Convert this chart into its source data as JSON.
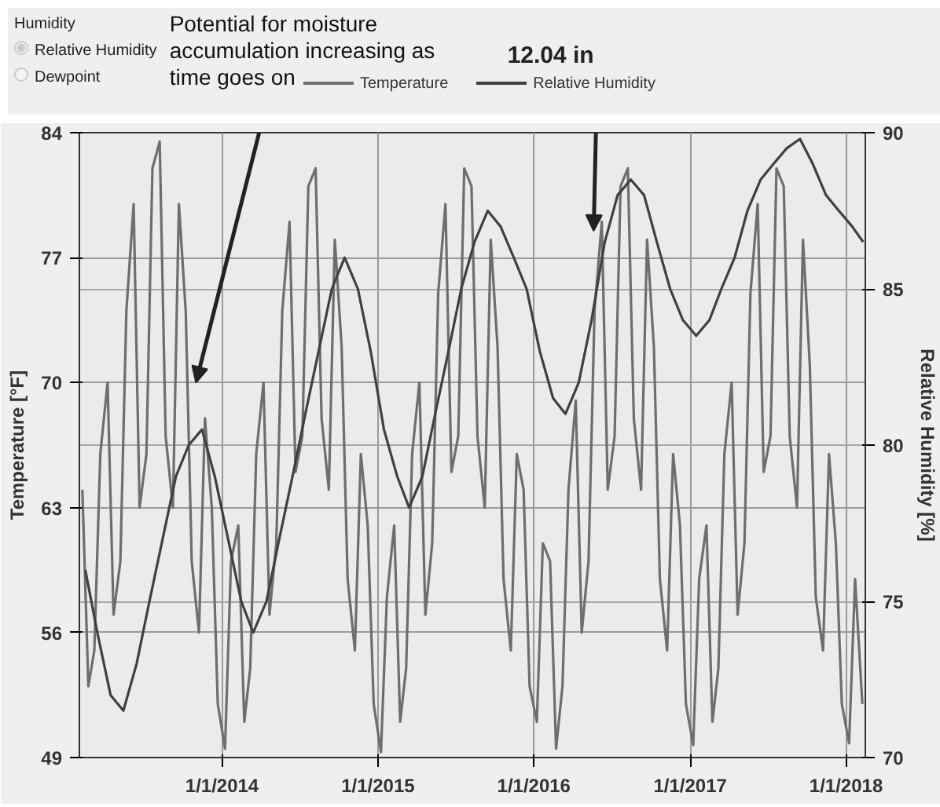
{
  "chart_data": {
    "type": "line",
    "ylabel": "Temperature [°F]",
    "y2label": "Relative Humidity [%]",
    "xlim": [
      "2013-02-01",
      "2018-02-15"
    ],
    "xticks": [
      {
        "value": "2014-01-01",
        "label": "1/1/2014"
      },
      {
        "value": "2015-01-01",
        "label": "1/1/2015"
      },
      {
        "value": "2016-01-01",
        "label": "1/1/2016"
      },
      {
        "value": "2017-01-01",
        "label": "1/1/2017"
      },
      {
        "value": "2018-01-01",
        "label": "1/1/2018"
      }
    ],
    "ylim": [
      49,
      84
    ],
    "yticks": [
      49,
      56,
      63,
      70,
      77,
      84
    ],
    "y2lim": [
      70,
      90
    ],
    "y2ticks": [
      70,
      75,
      80,
      85,
      90
    ],
    "grid": true,
    "legend": "top",
    "annotations": [
      "Humidity",
      "Relative Humidity",
      "Dewpoint",
      {
        "text": "Potential for moisture accumulation increasing as time goes on",
        "x": "2013-11-01",
        "y": 70
      },
      {
        "text": "12.04 in",
        "x": "2016-05-20",
        "y": 78.5
      }
    ],
    "series": [
      {
        "name": "Temperature",
        "color": "#6e6e6e",
        "x": [
          "2013-02-08",
          "2013-02-22",
          "2013-03-08",
          "2013-03-22",
          "2013-04-08",
          "2013-04-22",
          "2013-05-08",
          "2013-05-22",
          "2013-06-08",
          "2013-06-22",
          "2013-07-08",
          "2013-07-22",
          "2013-08-08",
          "2013-08-22",
          "2013-09-08",
          "2013-09-22",
          "2013-10-08",
          "2013-10-22",
          "2013-11-08",
          "2013-11-22",
          "2013-12-08",
          "2013-12-22",
          "2014-01-08",
          "2014-01-22",
          "2014-02-08",
          "2014-02-22",
          "2014-03-08",
          "2014-03-22",
          "2014-04-08",
          "2014-04-22",
          "2014-05-08",
          "2014-05-22",
          "2014-06-08",
          "2014-06-22",
          "2014-07-08",
          "2014-07-22",
          "2014-08-08",
          "2014-08-22",
          "2014-09-08",
          "2014-09-22",
          "2014-10-08",
          "2014-10-22",
          "2014-11-08",
          "2014-11-22",
          "2014-12-08",
          "2014-12-22",
          "2015-01-08",
          "2015-01-22",
          "2015-02-08",
          "2015-02-22",
          "2015-03-08",
          "2015-03-22",
          "2015-04-08",
          "2015-04-22",
          "2015-05-08",
          "2015-05-22",
          "2015-06-08",
          "2015-06-22",
          "2015-07-08",
          "2015-07-22",
          "2015-08-08",
          "2015-08-22",
          "2015-09-08",
          "2015-09-22",
          "2015-10-08",
          "2015-10-22",
          "2015-11-08",
          "2015-11-22",
          "2015-12-08",
          "2015-12-22",
          "2016-01-08",
          "2016-01-22",
          "2016-02-08",
          "2016-02-22",
          "2016-03-08",
          "2016-03-22",
          "2016-04-08",
          "2016-04-22",
          "2016-05-08",
          "2016-05-22",
          "2016-06-08",
          "2016-06-22",
          "2016-07-08",
          "2016-07-22",
          "2016-08-08",
          "2016-08-22",
          "2016-09-08",
          "2016-09-22",
          "2016-10-08",
          "2016-10-22",
          "2016-11-08",
          "2016-11-22",
          "2016-12-08",
          "2016-12-22",
          "2017-01-08",
          "2017-01-22",
          "2017-02-08",
          "2017-02-22",
          "2017-03-08",
          "2017-03-22",
          "2017-04-08",
          "2017-04-22",
          "2017-05-08",
          "2017-05-22",
          "2017-06-08",
          "2017-06-22",
          "2017-07-08",
          "2017-07-22",
          "2017-08-08",
          "2017-08-22",
          "2017-09-08",
          "2017-09-22",
          "2017-10-08",
          "2017-10-22",
          "2017-11-08",
          "2017-11-22",
          "2017-12-08",
          "2017-12-22",
          "2018-01-08",
          "2018-01-22",
          "2018-02-08"
        ],
        "values": [
          64,
          53,
          55,
          66,
          70,
          57,
          60,
          74,
          80,
          63,
          66,
          82,
          83.5,
          67,
          63,
          80,
          74,
          60,
          56,
          68,
          63,
          52,
          49.5,
          60,
          62,
          51,
          54,
          66,
          70,
          57,
          61,
          74,
          79,
          65,
          67,
          81,
          82,
          68,
          64,
          78,
          72,
          59,
          55,
          66,
          62,
          52,
          49.3,
          58,
          62,
          51,
          54,
          66,
          70,
          57,
          61,
          75,
          80,
          65,
          67,
          82,
          81,
          67,
          63,
          78,
          72,
          59,
          55,
          66,
          64,
          53,
          51,
          61,
          60,
          49.5,
          53,
          64,
          69,
          56,
          60,
          74,
          79,
          64,
          67,
          81,
          82,
          68,
          64,
          78,
          72,
          59,
          55,
          66,
          62,
          52,
          49.7,
          59,
          62,
          51,
          54,
          66,
          70,
          57,
          61,
          75,
          80,
          65,
          67,
          82,
          81,
          67,
          63,
          78,
          71,
          58,
          55,
          66,
          61,
          52,
          49.8,
          59,
          52
        ]
      },
      {
        "name": "Relative Humidity",
        "color": "#404040",
        "axis": "y2",
        "x": [
          "2013-02-15",
          "2013-03-15",
          "2013-04-15",
          "2013-05-15",
          "2013-06-15",
          "2013-07-15",
          "2013-08-15",
          "2013-09-15",
          "2013-10-15",
          "2013-11-15",
          "2013-12-15",
          "2014-01-15",
          "2014-02-15",
          "2014-03-15",
          "2014-04-15",
          "2014-05-15",
          "2014-06-15",
          "2014-07-15",
          "2014-08-15",
          "2014-09-15",
          "2014-10-15",
          "2014-11-15",
          "2014-12-15",
          "2015-01-15",
          "2015-02-15",
          "2015-03-15",
          "2015-04-15",
          "2015-05-15",
          "2015-06-15",
          "2015-07-15",
          "2015-08-15",
          "2015-09-15",
          "2015-10-15",
          "2015-11-15",
          "2015-12-15",
          "2016-01-15",
          "2016-02-15",
          "2016-03-15",
          "2016-04-15",
          "2016-05-15",
          "2016-06-15",
          "2016-07-15",
          "2016-08-15",
          "2016-09-15",
          "2016-10-15",
          "2016-11-15",
          "2016-12-15",
          "2017-01-15",
          "2017-02-15",
          "2017-03-15",
          "2017-04-15",
          "2017-05-15",
          "2017-06-15",
          "2017-07-15",
          "2017-08-15",
          "2017-09-15",
          "2017-10-15",
          "2017-11-15",
          "2017-12-15",
          "2018-01-15",
          "2018-02-10"
        ],
        "values": [
          76,
          74,
          72,
          71.5,
          73,
          75,
          77,
          79,
          80,
          80.5,
          79,
          77,
          75,
          74,
          75,
          77,
          79,
          81,
          83,
          85,
          86,
          85,
          83,
          80.5,
          79,
          78,
          79,
          81,
          83,
          85,
          86.5,
          87.5,
          87,
          86,
          85,
          83,
          81.5,
          81,
          82,
          84,
          86.5,
          88,
          88.5,
          88,
          86.5,
          85,
          84,
          83.5,
          84,
          85,
          86,
          87.5,
          88.5,
          89,
          89.5,
          89.8,
          89,
          88,
          87.5,
          87,
          86.5
        ]
      }
    ]
  }
}
